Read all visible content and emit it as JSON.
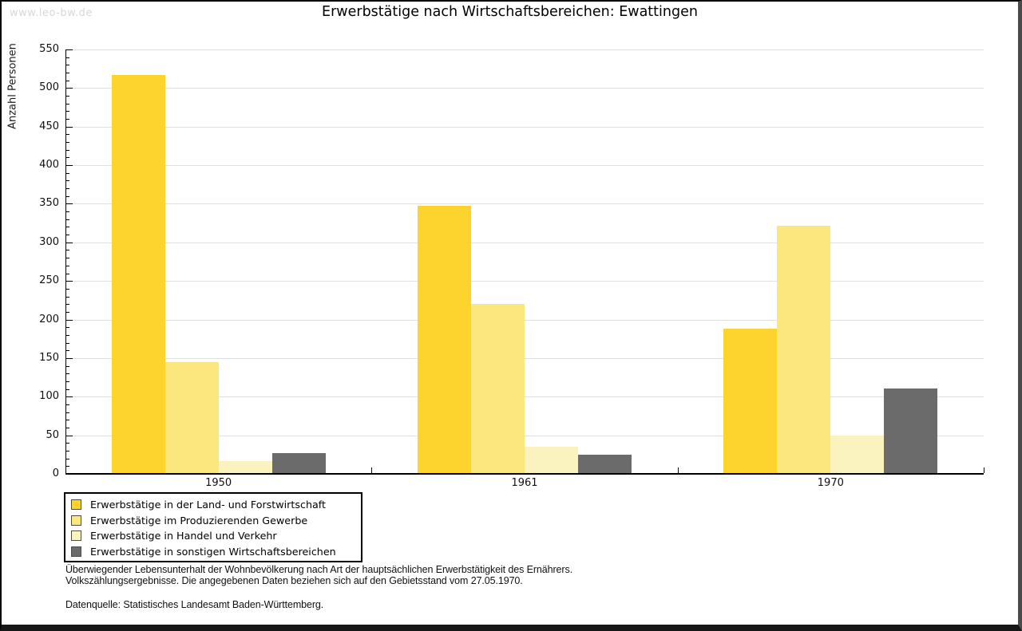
{
  "watermark": "www.leo-bw.de",
  "title": "Erwerbstätige nach Wirtschaftsbereichen: Ewattingen",
  "chart_data": {
    "type": "bar",
    "title": "Erwerbstätige nach Wirtschaftsbereichen: Ewattingen",
    "xlabel": "",
    "ylabel": "Anzahl Personen",
    "ylim": [
      0,
      550
    ],
    "ytick_step": 50,
    "ytick_minor_step": 10,
    "grid": "horizontal",
    "legend_position": "bottom-left",
    "categories": [
      "1950",
      "1961",
      "1970"
    ],
    "series": [
      {
        "name": "Erwerbstätige in der Land- und Forstwirtschaft",
        "color": "#FCD42D",
        "values": [
          517,
          347,
          188
        ]
      },
      {
        "name": "Erwerbstätige im Produzierenden Gewerbe",
        "color": "#FCE77F",
        "values": [
          145,
          220,
          322
        ]
      },
      {
        "name": "Erwerbstätige in Handel und Verkehr",
        "color": "#FBF3BF",
        "values": [
          17,
          35,
          50
        ]
      },
      {
        "name": "Erwerbstätige in sonstigen Wirtschaftsbereichen",
        "color": "#6B6B6B",
        "values": [
          27,
          25,
          111
        ]
      }
    ]
  },
  "footnotes": {
    "line1": "Überwiegender Lebensunterhalt der Wohnbevölkerung nach Art der hauptsächlichen Erwerbstätigkeit des Ernährers.",
    "line2": "Volkszählungsergebnisse. Die angegebenen Daten beziehen sich auf den Gebietsstand vom 27.05.1970.",
    "source": "Datenquelle: Statistisches Landesamt Baden-Württemberg."
  },
  "colors": {
    "grid": "#E0E0E0",
    "axis": "#000000",
    "watermark": "#D8D8D8",
    "background": "#FFFFFF"
  }
}
